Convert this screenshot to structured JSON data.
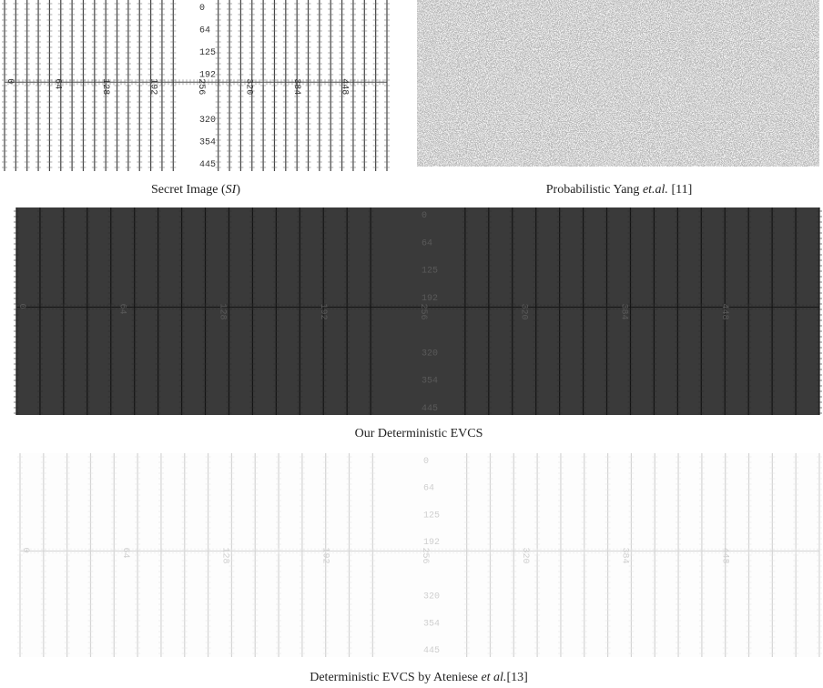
{
  "captions": {
    "secret": {
      "text": "Secret Image (",
      "emph": "SI",
      "end": ")"
    },
    "yang": {
      "text": "Probabilistic Yang ",
      "emph": "et.al.",
      "end": " [11]"
    },
    "ours": {
      "text": "Our Deterministic EVCS"
    },
    "ateniese": {
      "text": "Deterministic EVCS by Ateniese ",
      "emph": "et al.",
      "end": "[13]"
    }
  },
  "ruler": {
    "vertical_labels": [
      "0",
      "64",
      "125",
      "192",
      "320",
      "354",
      "445"
    ],
    "horizontal_labels": [
      "0",
      "64",
      "128",
      "192",
      "256",
      "320",
      "384",
      "448"
    ]
  }
}
